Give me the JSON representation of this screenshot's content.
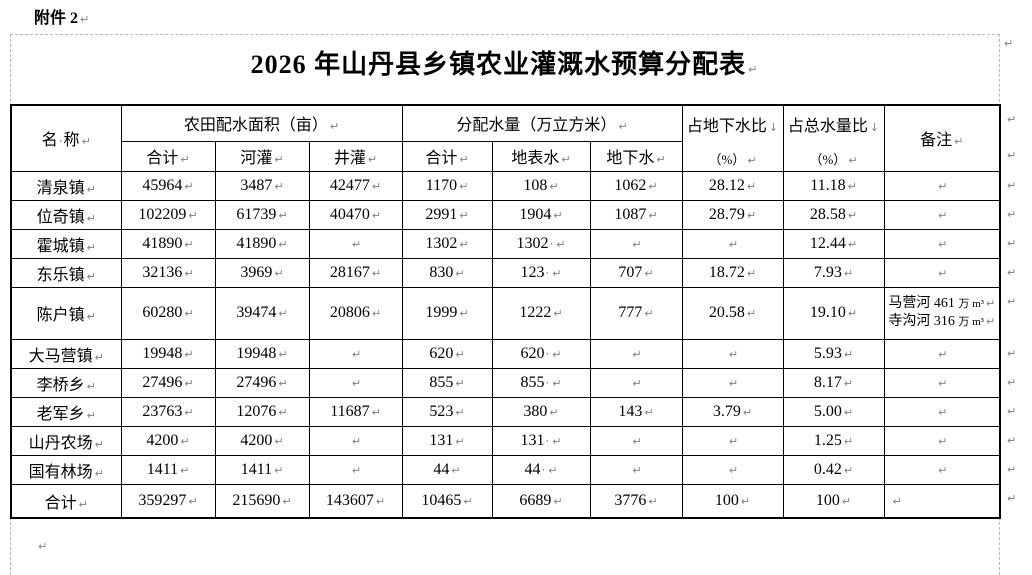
{
  "page": {
    "attachment_label": "附件 2",
    "title": "2026 年山丹县乡镇农业灌溉水预算分配表",
    "marks": {
      "pilcrow": "↵",
      "linebreak": "↓",
      "space_dot": "·"
    }
  },
  "table": {
    "header": {
      "name_part1": "名",
      "name_part2": "称",
      "area_group": "农田配水面积（亩）",
      "volume_group": "分配水量（万立方米）",
      "area_sub": [
        "合计",
        "河灌",
        "井灌"
      ],
      "volume_sub": [
        "合计",
        "地表水",
        "地下水"
      ],
      "pct_ground_title": "占地下水比",
      "pct_ground_unit": "（%）",
      "pct_total_title": "占总水量比",
      "pct_total_unit": "（%）",
      "remark": "备注"
    },
    "rows": [
      {
        "name": "清泉镇",
        "cells": [
          "45964",
          "3487",
          "42477",
          "1170",
          "108",
          "1062",
          "28.12",
          "11.18",
          ""
        ]
      },
      {
        "name": "位奇镇",
        "cells": [
          "102209",
          "61739",
          "40470",
          "2991",
          "1904",
          "1087",
          "28.79",
          "28.58",
          ""
        ]
      },
      {
        "name": "霍城镇",
        "cells": [
          "41890",
          "41890",
          "",
          "1302",
          "1302 ·",
          "",
          "",
          "12.44",
          ""
        ]
      },
      {
        "name": "东乐镇",
        "cells": [
          "32136",
          "3969",
          "28167",
          "830",
          "123 ·",
          "707",
          "18.72",
          "7.93",
          ""
        ]
      },
      {
        "name": "陈户镇",
        "tall": true,
        "cells": [
          "60280",
          "39474",
          "20806",
          "1999",
          "1222",
          "777",
          "20.58",
          "19.10",
          [
            {
              "main": "马营河 461",
              "unit": "万 m³"
            },
            {
              "main": "寺沟河 316",
              "unit": "万 m³"
            }
          ]
        ]
      },
      {
        "name": "大马营镇",
        "cells": [
          "19948",
          "19948",
          "",
          "620",
          "620 ·",
          "",
          "",
          "5.93",
          ""
        ]
      },
      {
        "name": "李桥乡",
        "cells": [
          "27496",
          "27496",
          "",
          "855",
          "855 ·",
          "",
          "",
          "8.17",
          ""
        ]
      },
      {
        "name": "老军乡",
        "cells": [
          "23763",
          "12076",
          "11687",
          "523",
          "380",
          "143",
          "3.79",
          "5.00",
          ""
        ]
      },
      {
        "name": "山丹农场",
        "cells": [
          "4200",
          "4200",
          "",
          "131",
          "131 ·",
          "",
          "",
          "1.25",
          ""
        ]
      },
      {
        "name": "国有林场",
        "cells": [
          "1411",
          "1411",
          "",
          "44",
          "44 ·",
          "",
          "",
          "0.42",
          ""
        ]
      },
      {
        "name": "合计",
        "total": true,
        "cells": [
          "359297",
          "215690",
          "143607",
          "10465",
          "6689",
          "3776",
          "100",
          "100",
          ""
        ]
      }
    ]
  }
}
